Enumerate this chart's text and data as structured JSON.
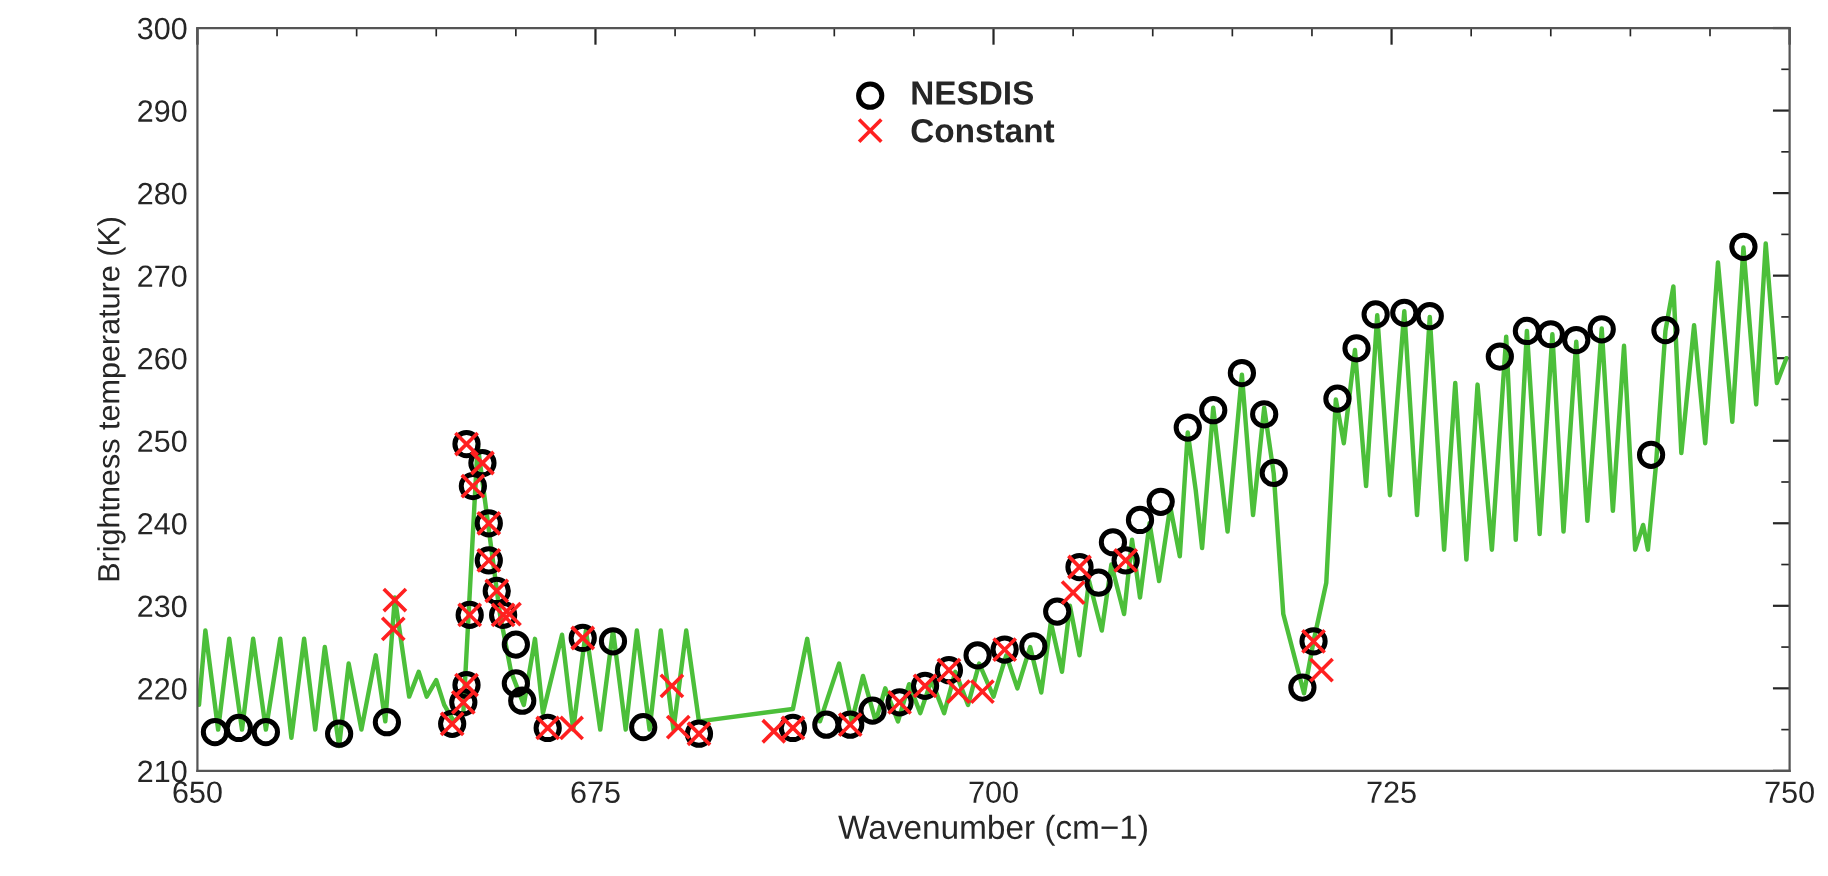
{
  "chart_data": {
    "type": "line",
    "xlabel": "Wavenumber (cm−1)",
    "ylabel": "Brightness temperature (K)",
    "xlim": [
      650,
      750
    ],
    "xticks": [
      650,
      675,
      700,
      725,
      750
    ],
    "ylim": [
      210,
      300
    ],
    "yticks": [
      210,
      220,
      230,
      240,
      250,
      260,
      270,
      280,
      290,
      300
    ],
    "grid": false,
    "legend": "top",
    "line_style": "solid",
    "series": [
      {
        "color": "#4cbf3a",
        "marker": "none",
        "x": [
          650.1,
          650.5,
          651.3,
          652.0,
          652.8,
          653.5,
          654.3,
          655.2,
          655.9,
          656.7,
          657.4,
          658.0,
          658.9,
          659.5,
          660.3,
          661.2,
          661.8,
          662.4,
          663.3,
          663.9,
          664.4,
          665.0,
          665.5,
          666.1,
          666.7,
          667.6,
          669.0,
          669.7,
          670.5,
          671.2,
          671.7,
          672.9,
          673.6,
          674.4,
          675.3,
          676.1,
          676.9,
          677.6,
          678.4,
          679.1,
          679.9,
          680.7,
          681.5,
          687.4,
          688.3,
          689.1,
          690.3,
          691.1,
          691.8,
          692.6,
          693.2,
          694.0,
          694.7,
          695.4,
          696.1,
          696.9,
          697.6,
          698.4,
          699.1,
          700.0,
          700.8,
          701.5,
          702.3,
          703.0,
          703.6,
          704.3,
          704.8,
          705.4,
          706.0,
          706.8,
          707.4,
          708.2,
          708.7,
          709.2,
          709.8,
          710.4,
          711.1,
          711.7,
          712.2,
          712.7,
          713.1,
          713.8,
          714.7,
          715.6,
          716.3,
          717.0,
          717.6,
          718.2,
          719.5,
          720.1,
          720.9,
          721.5,
          722.0,
          722.7,
          723.4,
          724.1,
          724.9,
          725.8,
          726.6,
          727.4,
          728.3,
          729.0,
          729.7,
          730.4,
          731.3,
          732.2,
          732.8,
          733.5,
          734.3,
          735.1,
          735.8,
          736.6,
          737.3,
          738.2,
          738.9,
          739.6,
          740.3,
          740.8,
          741.1,
          741.6,
          742.2,
          742.7,
          743.2,
          744.0,
          744.7,
          745.5,
          746.4,
          747.1,
          747.9,
          748.5,
          749.2,
          749.8
        ],
        "values": [
          218,
          227,
          215,
          226,
          215,
          226,
          215,
          226,
          214,
          226,
          215,
          225,
          213,
          223,
          215,
          224,
          216,
          231,
          219,
          222,
          219,
          221,
          218,
          216,
          217,
          249.5,
          229,
          222,
          218,
          226,
          217,
          226.5,
          215,
          227,
          215,
          227,
          215,
          227,
          215,
          227,
          215,
          227,
          216,
          217.5,
          226,
          216,
          223,
          216,
          221.5,
          216,
          220,
          216,
          220.5,
          217,
          221,
          217,
          222,
          218,
          223,
          219,
          224,
          220,
          225,
          219.5,
          228,
          222,
          230,
          224,
          233,
          227,
          235,
          229,
          238,
          231,
          240,
          233,
          242,
          236,
          251,
          244,
          237,
          254,
          239,
          258,
          241,
          254,
          246,
          229,
          219.4,
          225.7,
          232.8,
          255,
          249.7,
          261,
          244.5,
          265.2,
          243.4,
          265.7,
          241,
          265,
          236.8,
          257,
          235.6,
          256.8,
          236.8,
          262.6,
          238,
          263.3,
          238.7,
          262.9,
          239,
          262,
          240.3,
          263.6,
          241.5,
          261.5,
          236.8,
          239.8,
          236.8,
          246.9,
          263.3,
          268.7,
          248.5,
          264,
          249.7,
          271.6,
          252.3,
          273.4,
          254.4,
          273.9,
          257,
          260
        ]
      },
      {
        "type": "scatter",
        "name": "NESDIS",
        "color": "#000000",
        "marker": "circle",
        "x": [
          651.1,
          652.6,
          654.3,
          658.9,
          661.9,
          666.0,
          666.7,
          666.9,
          667.1,
          666.9,
          667.9,
          667.3,
          668.3,
          668.3,
          668.8,
          669.2,
          670.0,
          670.0,
          670.4,
          672.0,
          674.2,
          676.1,
          678.0,
          681.5,
          687.4,
          689.5,
          691.0,
          692.4,
          694.1,
          695.7,
          697.2,
          699.0,
          700.7,
          702.5,
          704.0,
          705.4,
          706.6,
          707.5,
          708.3,
          709.2,
          710.5,
          712.2,
          713.8,
          715.6,
          717.0,
          717.6,
          719.4,
          720.1,
          721.6,
          722.8,
          724.0,
          725.8,
          727.4,
          731.8,
          733.5,
          735.0,
          736.6,
          738.2,
          741.3,
          742.2,
          747.1
        ],
        "values": [
          214.7,
          215.2,
          214.7,
          214.5,
          215.9,
          215.7,
          218.3,
          220.4,
          228.9,
          249.6,
          247.3,
          244.5,
          240,
          235.5,
          231.8,
          228.9,
          225.3,
          220.6,
          218.5,
          215.2,
          226.1,
          225.7,
          215.3,
          214.5,
          215.2,
          215.6,
          215.6,
          217.3,
          218.3,
          220.3,
          222.2,
          224,
          224.7,
          225.1,
          229.3,
          234.7,
          232.8,
          237.7,
          235.5,
          240.4,
          242.6,
          251.6,
          253.7,
          258.2,
          253.2,
          246.1,
          220.1,
          225.7,
          255.1,
          261.2,
          265.3,
          265.5,
          265.1,
          260.2,
          263.3,
          262.9,
          262.2,
          263.5,
          248.3,
          263.4,
          273.5
        ]
      },
      {
        "type": "scatter",
        "name": "Constant",
        "color": "#ff2020",
        "marker": "cross",
        "x": [
          662.4,
          662.3,
          666.0,
          666.7,
          666.9,
          667.1,
          666.9,
          667.9,
          667.3,
          668.3,
          668.3,
          668.8,
          669.2,
          669.6,
          672.0,
          673.5,
          674.2,
          679.8,
          680.2,
          681.5,
          686.2,
          687.4,
          691.0,
          694.1,
          695.7,
          697.2,
          697.8,
          699.3,
          700.7,
          705.0,
          705.4,
          708.3,
          720.6,
          720.1
        ],
        "values": [
          230.7,
          227.2,
          215.7,
          218.3,
          220.4,
          228.9,
          249.6,
          247.3,
          244.5,
          240,
          235.5,
          231.8,
          228.9,
          229,
          215.2,
          215.2,
          226.1,
          220.3,
          215.3,
          214.5,
          214.8,
          215.2,
          215.6,
          218.3,
          220.3,
          222.2,
          219.6,
          219.6,
          224.7,
          231.6,
          234.7,
          235.5,
          222.2,
          225.7
        ]
      }
    ]
  }
}
